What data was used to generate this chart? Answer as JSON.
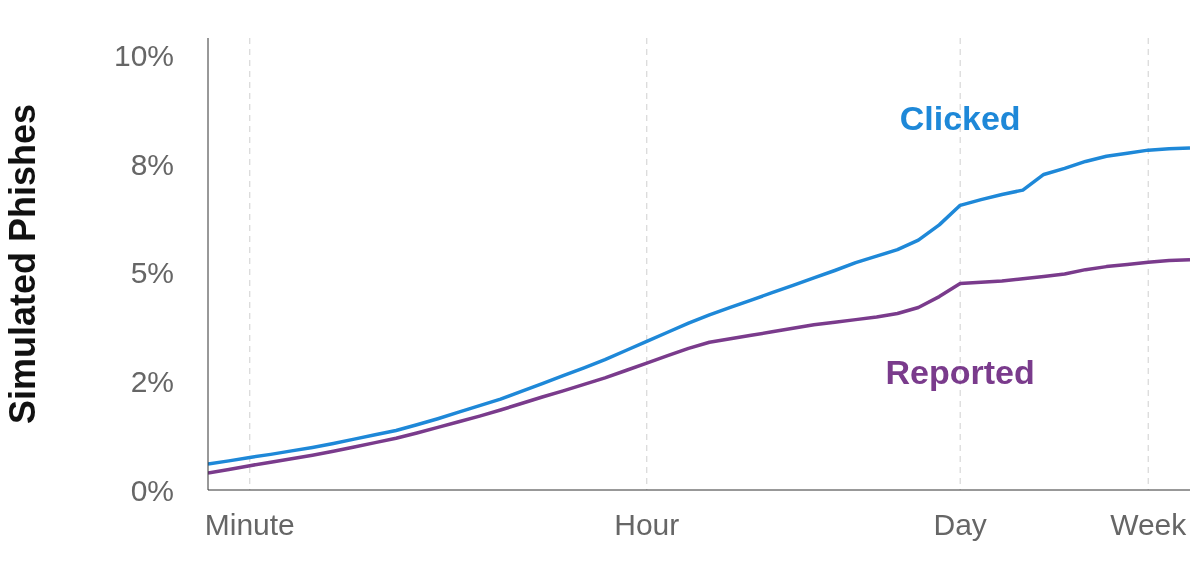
{
  "chart_data": {
    "type": "line",
    "ylabel": "Simulated Phishes",
    "grid": "x",
    "categories": [
      null,
      null,
      "Minute",
      null,
      null,
      null,
      null,
      null,
      null,
      null,
      null,
      null,
      null,
      null,
      null,
      null,
      null,
      null,
      null,
      null,
      null,
      "Hour",
      null,
      null,
      null,
      null,
      null,
      null,
      null,
      null,
      null,
      null,
      null,
      null,
      null,
      null,
      "Day",
      null,
      null,
      null,
      null,
      null,
      null,
      null,
      null,
      "Week",
      null,
      null
    ],
    "ylim": [
      0,
      10.4
    ],
    "yticks": [
      {
        "value": 0,
        "label": "0%"
      },
      {
        "value": 2.5,
        "label": "2%"
      },
      {
        "value": 5,
        "label": "5%"
      },
      {
        "value": 7.5,
        "label": "8%"
      },
      {
        "value": 10,
        "label": "10%"
      }
    ],
    "series": [
      {
        "name": "Clicked",
        "color": "#1e88d8",
        "values": [
          0.6,
          0.67,
          0.75,
          0.82,
          0.9,
          0.98,
          1.07,
          1.17,
          1.27,
          1.37,
          1.5,
          1.64,
          1.79,
          1.94,
          2.09,
          2.27,
          2.45,
          2.63,
          2.81,
          3.0,
          3.21,
          3.42,
          3.63,
          3.84,
          4.03,
          4.2,
          4.37,
          4.54,
          4.71,
          4.88,
          5.05,
          5.23,
          5.38,
          5.53,
          5.75,
          6.1,
          6.55,
          6.68,
          6.8,
          6.9,
          7.26,
          7.4,
          7.56,
          7.68,
          7.75,
          7.82,
          7.85,
          7.87
        ]
      },
      {
        "name": "Reported",
        "color": "#7a3b8c",
        "values": [
          0.39,
          0.47,
          0.56,
          0.64,
          0.72,
          0.8,
          0.89,
          0.99,
          1.09,
          1.19,
          1.31,
          1.44,
          1.57,
          1.7,
          1.84,
          1.99,
          2.14,
          2.28,
          2.43,
          2.58,
          2.75,
          2.92,
          3.09,
          3.26,
          3.4,
          3.48,
          3.56,
          3.64,
          3.72,
          3.8,
          3.86,
          3.92,
          3.98,
          4.06,
          4.2,
          4.45,
          4.75,
          4.78,
          4.81,
          4.86,
          4.91,
          4.97,
          5.07,
          5.14,
          5.19,
          5.24,
          5.28,
          5.3
        ]
      }
    ]
  }
}
